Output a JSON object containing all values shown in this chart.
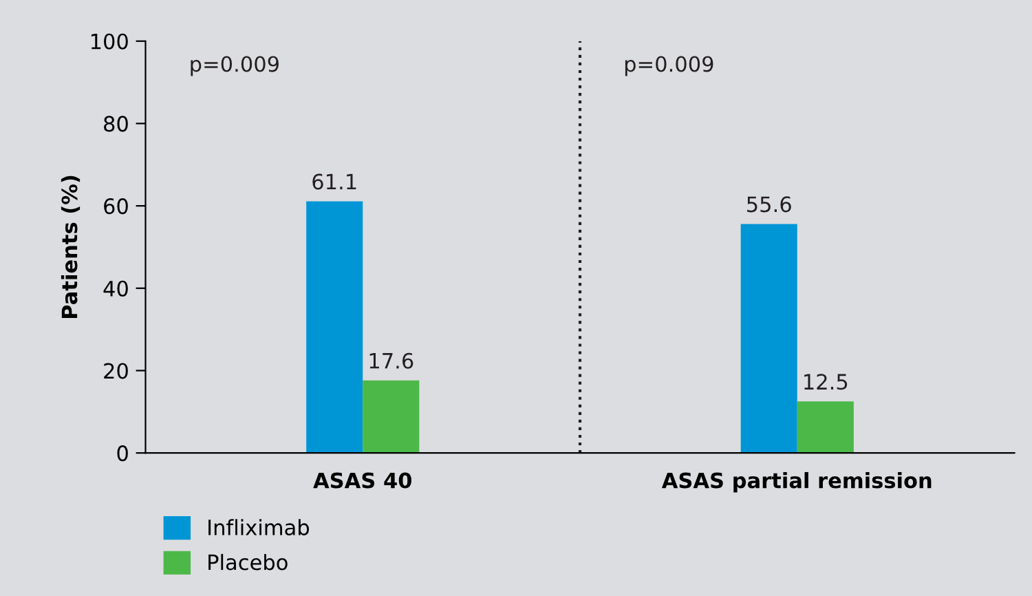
{
  "chart_data": {
    "type": "bar",
    "ylabel": "Patients (%)",
    "categories": [
      "ASAS 40",
      "ASAS partial remission"
    ],
    "series": [
      {
        "name": "Infliximab",
        "color": "#0096d6",
        "values": [
          61.1,
          55.6
        ]
      },
      {
        "name": "Placebo",
        "color": "#4cb848",
        "values": [
          17.6,
          12.5
        ]
      }
    ],
    "ylim": [
      0,
      100
    ],
    "yticks": [
      0,
      20,
      40,
      60,
      80,
      100
    ],
    "data_labels": true,
    "grid": false,
    "legend": "bottom left",
    "annotations": [
      "p=0.009",
      "p=0.009"
    ]
  }
}
